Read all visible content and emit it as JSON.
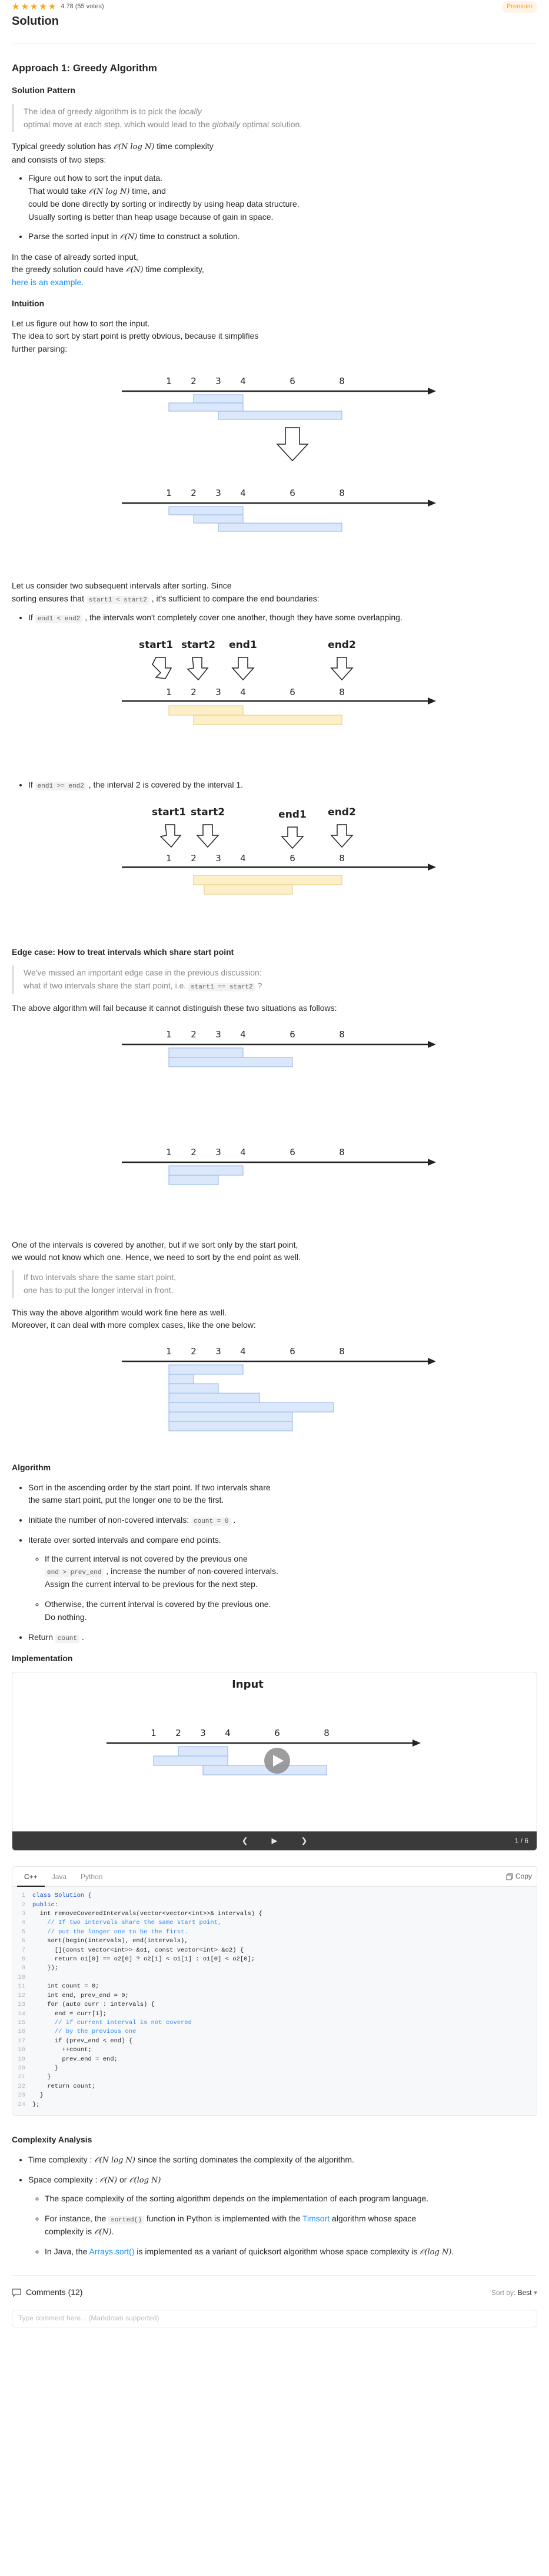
{
  "header": {
    "stars": [
      "★",
      "★",
      "★",
      "★",
      "★"
    ],
    "rating": "4.78 (55 votes)",
    "premium_label": "Premium"
  },
  "title": "Solution",
  "approach": {
    "heading": "Approach 1: Greedy Algorithm",
    "pattern_heading": "Solution Pattern",
    "pattern_quote_1": "The idea of greedy algorithm is to pick the ",
    "pattern_quote_locally": "locally",
    "pattern_quote_2": "optimal move at each step, which would lead to the ",
    "pattern_quote_globally": "globally",
    "pattern_quote_3": " optimal solution.",
    "typical_1": "Typical greedy solution has ",
    "typical_math": "𝒪(N log N)",
    "typical_2": " time complexity",
    "typical_3": "and consists of two steps:",
    "step1_a": "Figure out how to sort the input data.",
    "step1_b": "That would take ",
    "step1_math": "𝒪(N log N)",
    "step1_c": " time, and",
    "step1_d": "could be done directly by sorting or indirectly by using heap data structure.",
    "step1_e": "Usually sorting is better than heap usage because of gain in space.",
    "step2_a": "Parse the sorted input in ",
    "step2_math": "𝒪(N)",
    "step2_b": " time to construct a solution.",
    "sorted_1": "In the case of already sorted input,",
    "sorted_2": "the greedy solution could have ",
    "sorted_math": "𝒪(N)",
    "sorted_3": " time complexity,",
    "example_link": "here is an example."
  },
  "intuition": {
    "heading": "Intuition",
    "p1": "Let us figure out how to sort the input.",
    "p2": "The idea to sort by start point is pretty obvious, because it simplifies",
    "p3": "further parsing:",
    "consider_1": "Let us consider two subsequent intervals after sorting. Since",
    "consider_2a": "sorting ensures that ",
    "consider_code": "start1 < start2",
    "consider_2b": " , it's sufficient to compare the end boundaries:",
    "case1_a": "If ",
    "case1_code": "end1 < end2",
    "case1_b": " , the intervals won't completely cover one another, though they have some overlapping.",
    "case2_a": "If ",
    "case2_code": "end1 >= end2",
    "case2_b": " , the interval 2 is covered by the interval 1."
  },
  "figure_labels": {
    "ticks": [
      "1",
      "2",
      "3",
      "4",
      "6",
      "8"
    ],
    "start1": "start1",
    "start2": "start2",
    "end1": "end1",
    "end2": "end2",
    "input_title": "Input"
  },
  "edge_case": {
    "heading": "Edge case: How to treat intervals which share start point",
    "quote_1": "We've missed an important edge case in the previous discussion:",
    "quote_2a": "what if two intervals share the start point, i.e. ",
    "quote_code": "start1 == start2",
    "quote_2b": " ?",
    "fail": "The above algorithm will fail because it cannot distinguish these two situations as follows:",
    "covered_1": "One of the intervals is covered by another, but if we sort only by the start point,",
    "covered_2": "we would not know which one. Hence, we need to sort by the end point as well.",
    "quote2_1": "If two intervals share the same start point,",
    "quote2_2": "one has to put the longer interval in front.",
    "work_1": "This way the above algorithm would work fine here as well.",
    "work_2": "Moreover, it can deal with more complex cases, like the one below:"
  },
  "algorithm": {
    "heading": "Algorithm",
    "s1_a": "Sort in the ascending order by the start point. If two intervals share",
    "s1_b": "the same start point, put the longer one to be the first.",
    "s2_a": "Initiate the number of non-covered intervals: ",
    "s2_code": "count = 0",
    "s2_b": " .",
    "s3": "Iterate over sorted intervals and compare end points.",
    "s3a_1": "If the current interval is not covered by the previous one",
    "s3a_code": "end > prev_end",
    "s3a_2": " , increase the number of non-covered intervals.",
    "s3a_3": "Assign the current interval to be previous for the next step.",
    "s3b_1": "Otherwise, the current interval is covered by the previous one.",
    "s3b_2": "Do nothing.",
    "s4_a": "Return ",
    "s4_code": "count",
    "s4_b": " ."
  },
  "implementation": {
    "heading": "Implementation",
    "slide_prev": "❮",
    "slide_play": "▶",
    "slide_next": "❯",
    "slide_count": "1 / 6"
  },
  "code": {
    "tabs": [
      "C++",
      "Java",
      "Python"
    ],
    "active_tab": "C++",
    "copy_label": "Copy",
    "lines": [
      {
        "n": "1",
        "t": "class Solution {",
        "c": "kw"
      },
      {
        "n": "2",
        "t": "public:",
        "c": "kw"
      },
      {
        "n": "3",
        "t": "  int removeCoveredIntervals(vector<vector<int>>& intervals) {",
        "c": ""
      },
      {
        "n": "4",
        "t": "    // If two intervals share the same start point,",
        "c": "cm"
      },
      {
        "n": "5",
        "t": "    // put the longer one to be the first.",
        "c": "cm"
      },
      {
        "n": "6",
        "t": "    sort(begin(intervals), end(intervals),",
        "c": ""
      },
      {
        "n": "7",
        "t": "      [](const vector<int>> &o1, const vector<int> &o2) {",
        "c": ""
      },
      {
        "n": "8",
        "t": "      return o1[0] == o2[0] ? o2[1] < o1[1] : o1[0] < o2[0];",
        "c": ""
      },
      {
        "n": "9",
        "t": "    });",
        "c": ""
      },
      {
        "n": "10",
        "t": "",
        "c": ""
      },
      {
        "n": "11",
        "t": "    int count = 0;",
        "c": ""
      },
      {
        "n": "12",
        "t": "    int end, prev_end = 0;",
        "c": ""
      },
      {
        "n": "13",
        "t": "    for (auto curr : intervals) {",
        "c": ""
      },
      {
        "n": "14",
        "t": "      end = curr[1];",
        "c": ""
      },
      {
        "n": "15",
        "t": "      // if current interval is not covered",
        "c": "cm"
      },
      {
        "n": "16",
        "t": "      // by the previous one",
        "c": "cm"
      },
      {
        "n": "17",
        "t": "      if (prev_end < end) {",
        "c": ""
      },
      {
        "n": "18",
        "t": "        ++count;",
        "c": ""
      },
      {
        "n": "19",
        "t": "        prev_end = end;",
        "c": ""
      },
      {
        "n": "20",
        "t": "      }",
        "c": ""
      },
      {
        "n": "21",
        "t": "    }",
        "c": ""
      },
      {
        "n": "22",
        "t": "    return count;",
        "c": ""
      },
      {
        "n": "23",
        "t": "  }",
        "c": ""
      },
      {
        "n": "24",
        "t": "};",
        "c": ""
      }
    ]
  },
  "complexity": {
    "heading": "Complexity Analysis",
    "time_a": "Time complexity : ",
    "time_math": "𝒪(N log N)",
    "time_b": " since the sorting dominates the complexity of the algorithm.",
    "space_a": "Space complexity : ",
    "space_math1": "𝒪(N)",
    "space_or": " or ",
    "space_math2": "𝒪(log N)",
    "sub1_a": "The space complexity of the sorting algorithm depends on the implementation of each program language.",
    "sub2_a": "For instance, the ",
    "sub2_code": "sorted()",
    "sub2_b": " function in Python is implemented with the ",
    "sub2_link": "Timsort",
    "sub2_c": " algorithm whose space",
    "sub2_d": "complexity is ",
    "sub2_math": "𝒪(N)",
    "sub2_e": ".",
    "sub3_a": "In Java, the ",
    "sub3_link": "Arrays.sort()",
    "sub3_b": " is implemented as a variant of quicksort algorithm whose space complexity is ",
    "sub3_math": "𝒪(log N)",
    "sub3_c": "."
  },
  "comments": {
    "title": "Comments (12)",
    "sort_label": "Sort by:",
    "sort_value": "Best",
    "placeholder": "Type comment here... (Markdown supported)"
  },
  "colors": {
    "accent": "#ffa116",
    "link": "#1a90ff",
    "interval_blue": "#dbe7fb",
    "interval_blue_border": "#8fb3e8",
    "interval_yellow": "#fdf0c8",
    "interval_yellow_border": "#e8c878"
  }
}
